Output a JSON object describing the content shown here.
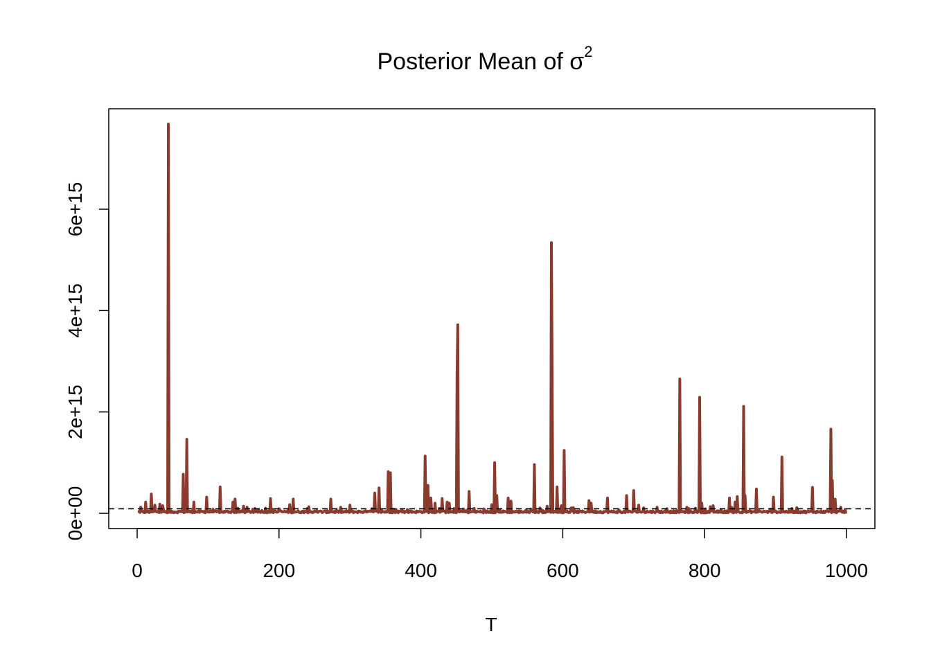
{
  "chart_data": {
    "type": "line",
    "title": "Posterior Mean of σ",
    "title_superscript": "2",
    "xlabel": "T",
    "ylabel": "",
    "xlim": [
      0,
      1000
    ],
    "ylim": [
      0,
      7700000000000000.0
    ],
    "x_ticks": [
      0,
      200,
      400,
      600,
      800,
      1000
    ],
    "x_tick_labels": [
      "0",
      "200",
      "400",
      "600",
      "800",
      "1000"
    ],
    "y_ticks": [
      0,
      2000000000000000.0,
      4000000000000000.0,
      6000000000000000.0
    ],
    "y_tick_labels": [
      "0e+00",
      "2e+15",
      "4e+15",
      "6e+15"
    ],
    "grid": false,
    "reference_line": {
      "y": 90000000000000.0,
      "style": "dashed",
      "color": "#000000"
    },
    "series_color": "#8b3a2e",
    "baseline": 30000000000000.0,
    "n_points": 1000,
    "spikes": [
      {
        "x": 5,
        "y": 120000000000000.0
      },
      {
        "x": 12,
        "y": 220000000000000.0
      },
      {
        "x": 20,
        "y": 380000000000000.0
      },
      {
        "x": 25,
        "y": 160000000000000.0
      },
      {
        "x": 32,
        "y": 180000000000000.0
      },
      {
        "x": 36,
        "y": 150000000000000.0
      },
      {
        "x": 44,
        "y": 7680000000000000.0
      },
      {
        "x": 65,
        "y": 770000000000000.0
      },
      {
        "x": 70,
        "y": 1460000000000000.0
      },
      {
        "x": 80,
        "y": 220000000000000.0
      },
      {
        "x": 98,
        "y": 320000000000000.0
      },
      {
        "x": 117,
        "y": 520000000000000.0
      },
      {
        "x": 135,
        "y": 220000000000000.0
      },
      {
        "x": 138,
        "y": 280000000000000.0
      },
      {
        "x": 150,
        "y": 140000000000000.0
      },
      {
        "x": 155,
        "y": 120000000000000.0
      },
      {
        "x": 188,
        "y": 290000000000000.0
      },
      {
        "x": 200,
        "y": 90000000000000.0
      },
      {
        "x": 215,
        "y": 170000000000000.0
      },
      {
        "x": 220,
        "y": 280000000000000.0
      },
      {
        "x": 242,
        "y": 130000000000000.0
      },
      {
        "x": 273,
        "y": 280000000000000.0
      },
      {
        "x": 300,
        "y": 160000000000000.0
      },
      {
        "x": 335,
        "y": 400000000000000.0
      },
      {
        "x": 341,
        "y": 500000000000000.0
      },
      {
        "x": 354,
        "y": 820000000000000.0
      },
      {
        "x": 357,
        "y": 800000000000000.0
      },
      {
        "x": 406,
        "y": 1130000000000000.0
      },
      {
        "x": 410,
        "y": 550000000000000.0
      },
      {
        "x": 414,
        "y": 300000000000000.0
      },
      {
        "x": 420,
        "y": 200000000000000.0
      },
      {
        "x": 430,
        "y": 290000000000000.0
      },
      {
        "x": 437,
        "y": 220000000000000.0
      },
      {
        "x": 440,
        "y": 200000000000000.0
      },
      {
        "x": 451,
        "y": 2700000000000000.0
      },
      {
        "x": 452,
        "y": 3720000000000000.0
      },
      {
        "x": 468,
        "y": 430000000000000.0
      },
      {
        "x": 500,
        "y": 170000000000000.0
      },
      {
        "x": 504,
        "y": 1000000000000000.0
      },
      {
        "x": 507,
        "y": 350000000000000.0
      },
      {
        "x": 523,
        "y": 300000000000000.0
      },
      {
        "x": 527,
        "y": 240000000000000.0
      },
      {
        "x": 560,
        "y": 960000000000000.0
      },
      {
        "x": 578,
        "y": 140000000000000.0
      },
      {
        "x": 584,
        "y": 5340000000000000.0
      },
      {
        "x": 585,
        "y": 2730000000000000.0
      },
      {
        "x": 592,
        "y": 520000000000000.0
      },
      {
        "x": 598,
        "y": 150000000000000.0
      },
      {
        "x": 602,
        "y": 1240000000000000.0
      },
      {
        "x": 615,
        "y": 110000000000000.0
      },
      {
        "x": 637,
        "y": 250000000000000.0
      },
      {
        "x": 640,
        "y": 200000000000000.0
      },
      {
        "x": 663,
        "y": 300000000000000.0
      },
      {
        "x": 690,
        "y": 350000000000000.0
      },
      {
        "x": 700,
        "y": 450000000000000.0
      },
      {
        "x": 707,
        "y": 160000000000000.0
      },
      {
        "x": 733,
        "y": 120000000000000.0
      },
      {
        "x": 765,
        "y": 2650000000000000.0
      },
      {
        "x": 775,
        "y": 120000000000000.0
      },
      {
        "x": 793,
        "y": 2290000000000000.0
      },
      {
        "x": 796,
        "y": 200000000000000.0
      },
      {
        "x": 808,
        "y": 130000000000000.0
      },
      {
        "x": 812,
        "y": 150000000000000.0
      },
      {
        "x": 835,
        "y": 300000000000000.0
      },
      {
        "x": 843,
        "y": 220000000000000.0
      },
      {
        "x": 846,
        "y": 330000000000000.0
      },
      {
        "x": 855,
        "y": 2110000000000000.0
      },
      {
        "x": 857,
        "y": 350000000000000.0
      },
      {
        "x": 873,
        "y": 480000000000000.0
      },
      {
        "x": 897,
        "y": 320000000000000.0
      },
      {
        "x": 909,
        "y": 1110000000000000.0
      },
      {
        "x": 930,
        "y": 110000000000000.0
      },
      {
        "x": 952,
        "y": 510000000000000.0
      },
      {
        "x": 978,
        "y": 1660000000000000.0
      },
      {
        "x": 980,
        "y": 650000000000000.0
      },
      {
        "x": 984,
        "y": 280000000000000.0
      },
      {
        "x": 992,
        "y": 120000000000000.0
      }
    ]
  }
}
